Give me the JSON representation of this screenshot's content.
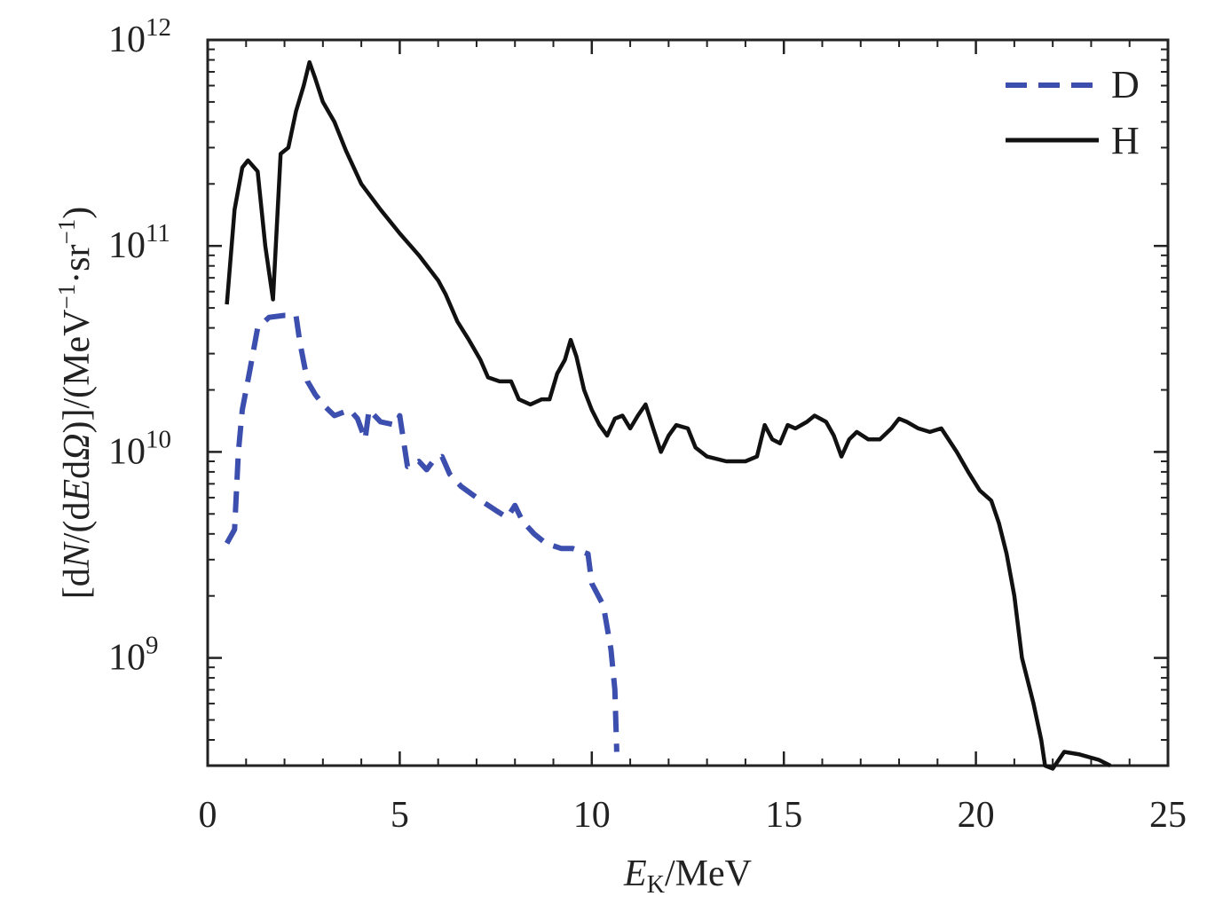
{
  "chart_data": {
    "type": "line",
    "title": "",
    "xlabel_main": "E",
    "xlabel_sub": "K",
    "xlabel_unit": "/MeV",
    "ylabel_parts": [
      "[d",
      "N",
      "/(d",
      "E",
      "d",
      "Ω",
      ")]/(MeV",
      "−1",
      "·sr",
      "−1",
      ")"
    ],
    "xlim": [
      0,
      25
    ],
    "ylim": [
      300000000,
      1000000000000
    ],
    "yscale": "log",
    "x_ticks": [
      "0",
      "5",
      "10",
      "15",
      "20",
      "25"
    ],
    "y_ticks": [
      {
        "base": "10",
        "exp": "9"
      },
      {
        "base": "10",
        "exp": "10"
      },
      {
        "base": "10",
        "exp": "11"
      },
      {
        "base": "10",
        "exp": "12"
      }
    ],
    "grid": false,
    "legend_position": "top-right",
    "series": [
      {
        "name": "D",
        "style": "dashed",
        "color": "#3d4fae",
        "points": [
          [
            0.5,
            3600000000.0
          ],
          [
            0.7,
            4200000000.0
          ],
          [
            0.8,
            10000000000.0
          ],
          [
            0.9,
            16000000000.0
          ],
          [
            1.1,
            25000000000.0
          ],
          [
            1.3,
            40000000000.0
          ],
          [
            1.6,
            45000000000.0
          ],
          [
            2.0,
            46000000000.0
          ],
          [
            2.3,
            46000000000.0
          ],
          [
            2.4,
            34000000000.0
          ],
          [
            2.6,
            22000000000.0
          ],
          [
            2.8,
            19000000000.0
          ],
          [
            3.0,
            17000000000.0
          ],
          [
            3.3,
            15000000000.0
          ],
          [
            3.7,
            16000000000.0
          ],
          [
            3.9,
            14500000000.0
          ],
          [
            4.1,
            11500000000.0
          ],
          [
            4.2,
            16000000000.0
          ],
          [
            4.5,
            14000000000.0
          ],
          [
            4.9,
            13500000000.0
          ],
          [
            5.0,
            15000000000.0
          ],
          [
            5.2,
            8500000000.0
          ],
          [
            5.5,
            9000000000.0
          ],
          [
            5.7,
            8200000000.0
          ],
          [
            5.9,
            9200000000.0
          ],
          [
            6.1,
            9500000000.0
          ],
          [
            6.3,
            7800000000.0
          ],
          [
            6.6,
            6800000000.0
          ],
          [
            7.0,
            6000000000.0
          ],
          [
            7.5,
            5200000000.0
          ],
          [
            7.8,
            4800000000.0
          ],
          [
            8.0,
            5500000000.0
          ],
          [
            8.2,
            4600000000.0
          ],
          [
            8.5,
            4000000000.0
          ],
          [
            8.8,
            3600000000.0
          ],
          [
            9.2,
            3400000000.0
          ],
          [
            9.5,
            3400000000.0
          ],
          [
            9.9,
            3200000000.0
          ],
          [
            10.0,
            2300000000.0
          ],
          [
            10.3,
            1800000000.0
          ],
          [
            10.5,
            1100000000.0
          ],
          [
            10.6,
            700000000.0
          ],
          [
            10.65,
            350000000.0
          ]
        ]
      },
      {
        "name": "H",
        "style": "solid",
        "color": "#111111",
        "points": [
          [
            0.5,
            52000000000.0
          ],
          [
            0.7,
            150000000000.0
          ],
          [
            0.9,
            240000000000.0
          ],
          [
            1.05,
            260000000000.0
          ],
          [
            1.3,
            230000000000.0
          ],
          [
            1.5,
            100000000000.0
          ],
          [
            1.7,
            55000000000.0
          ],
          [
            1.9,
            280000000000.0
          ],
          [
            2.1,
            300000000000.0
          ],
          [
            2.3,
            450000000000.0
          ],
          [
            2.5,
            600000000000.0
          ],
          [
            2.65,
            780000000000.0
          ],
          [
            2.8,
            650000000000.0
          ],
          [
            3.0,
            500000000000.0
          ],
          [
            3.3,
            400000000000.0
          ],
          [
            3.6,
            290000000000.0
          ],
          [
            4.0,
            200000000000.0
          ],
          [
            4.5,
            150000000000.0
          ],
          [
            5.0,
            115000000000.0
          ],
          [
            5.5,
            90000000000.0
          ],
          [
            6.0,
            68000000000.0
          ],
          [
            6.2,
            58000000000.0
          ],
          [
            6.5,
            43000000000.0
          ],
          [
            6.8,
            35000000000.0
          ],
          [
            7.1,
            28000000000.0
          ],
          [
            7.3,
            23000000000.0
          ],
          [
            7.6,
            22000000000.0
          ],
          [
            7.9,
            22000000000.0
          ],
          [
            8.1,
            18000000000.0
          ],
          [
            8.4,
            17000000000.0
          ],
          [
            8.7,
            18000000000.0
          ],
          [
            8.9,
            18000000000.0
          ],
          [
            9.1,
            24000000000.0
          ],
          [
            9.3,
            28000000000.0
          ],
          [
            9.45,
            35000000000.0
          ],
          [
            9.6,
            29000000000.0
          ],
          [
            9.8,
            20000000000.0
          ],
          [
            10.0,
            16000000000.0
          ],
          [
            10.2,
            13500000000.0
          ],
          [
            10.4,
            12000000000.0
          ],
          [
            10.6,
            14500000000.0
          ],
          [
            10.8,
            15000000000.0
          ],
          [
            11.0,
            13000000000.0
          ],
          [
            11.2,
            15000000000.0
          ],
          [
            11.4,
            17000000000.0
          ],
          [
            11.6,
            13000000000.0
          ],
          [
            11.8,
            10000000000.0
          ],
          [
            12.0,
            12000000000.0
          ],
          [
            12.2,
            13500000000.0
          ],
          [
            12.5,
            13000000000.0
          ],
          [
            12.7,
            10500000000.0
          ],
          [
            13.0,
            9500000000.0
          ],
          [
            13.5,
            9000000000.0
          ],
          [
            14.0,
            9000000000.0
          ],
          [
            14.3,
            9500000000.0
          ],
          [
            14.5,
            13500000000.0
          ],
          [
            14.7,
            11500000000.0
          ],
          [
            14.9,
            11000000000.0
          ],
          [
            15.1,
            13500000000.0
          ],
          [
            15.3,
            13000000000.0
          ],
          [
            15.6,
            14000000000.0
          ],
          [
            15.8,
            15000000000.0
          ],
          [
            16.1,
            14000000000.0
          ],
          [
            16.3,
            12000000000.0
          ],
          [
            16.5,
            9500000000.0
          ],
          [
            16.7,
            11500000000.0
          ],
          [
            16.9,
            12500000000.0
          ],
          [
            17.2,
            11500000000.0
          ],
          [
            17.5,
            11500000000.0
          ],
          [
            17.8,
            13000000000.0
          ],
          [
            18.0,
            14500000000.0
          ],
          [
            18.2,
            14000000000.0
          ],
          [
            18.5,
            13000000000.0
          ],
          [
            18.8,
            12500000000.0
          ],
          [
            19.1,
            13000000000.0
          ],
          [
            19.5,
            10000000000.0
          ],
          [
            19.8,
            8000000000.0
          ],
          [
            20.1,
            6500000000.0
          ],
          [
            20.4,
            5800000000.0
          ],
          [
            20.6,
            4500000000.0
          ],
          [
            20.8,
            3200000000.0
          ],
          [
            21.0,
            2000000000.0
          ],
          [
            21.2,
            1000000000.0
          ],
          [
            21.5,
            600000000.0
          ],
          [
            21.7,
            400000000.0
          ],
          [
            21.8,
            300000000.0
          ],
          [
            22.0,
            290000000.0
          ],
          [
            22.3,
            350000000.0
          ],
          [
            22.7,
            340000000.0
          ],
          [
            23.2,
            320000000.0
          ],
          [
            23.5,
            300000000.0
          ]
        ]
      }
    ]
  },
  "colors": {
    "axis": "#222222",
    "D": "#3d4fae",
    "H": "#111111"
  }
}
